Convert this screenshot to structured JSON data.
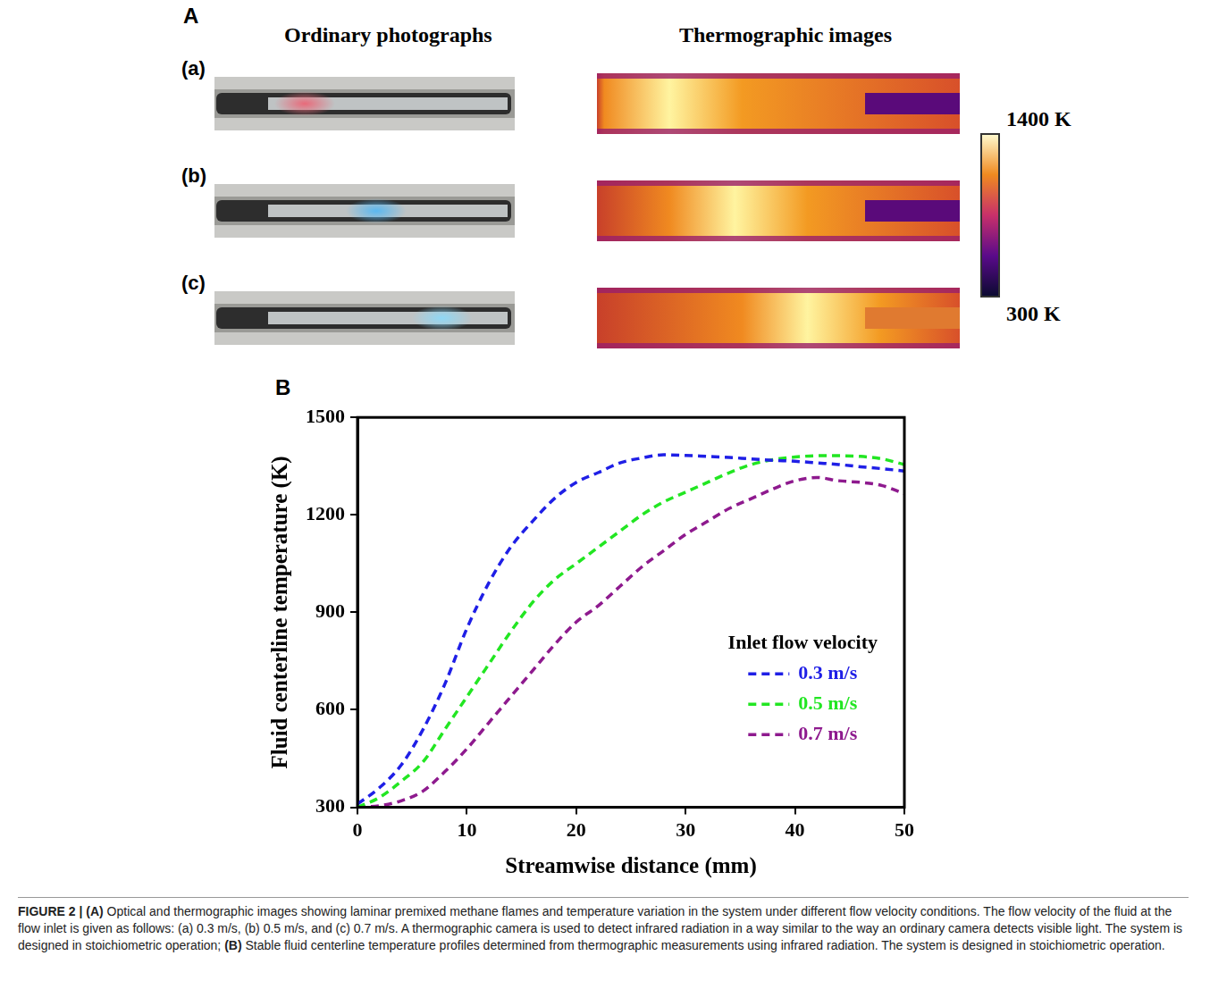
{
  "chart_data": {
    "type": "line",
    "x_label": "Streamwise distance (mm)",
    "y_label": "Fluid centerline temperature (K)",
    "legend_title": "Inlet flow velocity",
    "legend": "right",
    "grid": false,
    "x": [
      0,
      2,
      4,
      6,
      8,
      10,
      12,
      14,
      16,
      18,
      20,
      22,
      24,
      26,
      28,
      30,
      32,
      34,
      36,
      38,
      40,
      42,
      44,
      46,
      48,
      50
    ],
    "series": [
      {
        "name": "0.3 m/s",
        "color": "#1f1fe6",
        "line_style": "dashed",
        "values": [
          310,
          360,
          430,
          540,
          680,
          850,
          990,
          1100,
          1180,
          1250,
          1300,
          1330,
          1360,
          1375,
          1385,
          1383,
          1380,
          1377,
          1372,
          1368,
          1365,
          1360,
          1355,
          1348,
          1342,
          1335
        ]
      },
      {
        "name": "0.5 m/s",
        "color": "#22e622",
        "line_style": "dashed",
        "values": [
          300,
          330,
          380,
          440,
          540,
          640,
          740,
          840,
          930,
          1000,
          1050,
          1100,
          1150,
          1200,
          1240,
          1270,
          1300,
          1330,
          1355,
          1370,
          1378,
          1382,
          1382,
          1380,
          1372,
          1355
        ]
      },
      {
        "name": "0.7 m/s",
        "color": "#8e1a8e",
        "line_style": "dashed",
        "values": [
          300,
          305,
          320,
          350,
          410,
          480,
          560,
          640,
          720,
          800,
          870,
          920,
          980,
          1040,
          1090,
          1140,
          1180,
          1220,
          1250,
          1280,
          1305,
          1315,
          1305,
          1300,
          1290,
          1265
        ]
      }
    ],
    "xlim": [
      0,
      50
    ],
    "xticks": [
      0,
      10,
      20,
      30,
      40,
      50
    ],
    "ylim": [
      300,
      1500
    ],
    "yticks": [
      300,
      600,
      900,
      1200,
      1500
    ]
  },
  "figure": {
    "panel_a": {
      "letter": "A",
      "headers": [
        "Ordinary photographs",
        "Thermographic images"
      ],
      "rows": [
        "(a)",
        "(b)",
        "(c)"
      ],
      "colorbar": {
        "range": [
          300,
          1400
        ],
        "ticks": [
          {
            "value": 1400,
            "label": "1400 K"
          },
          {
            "value": 300,
            "label": "300 K"
          }
        ]
      }
    },
    "panel_b_letter": "B",
    "caption": [
      "FIGURE 2 | (A)",
      "Optical and thermographic images showing laminar premixed methane flames and temperature variation in the system under different flow velocity conditions. The flow velocity of the fluid at the flow inlet is given as follows: (a) 0.3 m/s, (b) 0.5 m/s, and (c) 0.7 m/s. A thermographic camera is used to detect infrared radiation in a way similar to the way an ordinary camera detects visible light. The system is designed in stoichiometric operation;",
      "(B)",
      "Stable fluid centerline temperature profiles determined from thermographic measurements using infrared radiation. The system is designed in stoichiometric operation."
    ]
  }
}
